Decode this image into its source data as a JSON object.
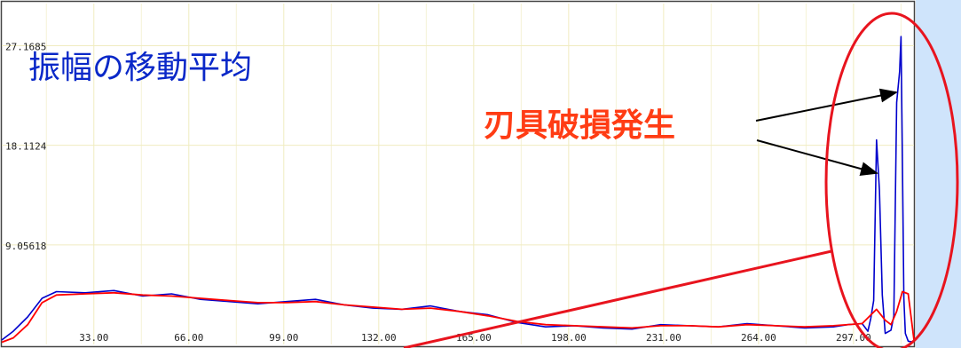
{
  "chart_data": {
    "type": "line",
    "title": "振幅の移動平均",
    "xlabel": "",
    "ylabel": "",
    "xlim": [
      1,
      318
    ],
    "ylim": [
      0,
      31
    ],
    "x_ticks": [
      "33.00",
      "66.00",
      "99.00",
      "132.00",
      "165.00",
      "198.00",
      "231.00",
      "264.00",
      "297.00"
    ],
    "y_ticks": [
      "9.05618",
      "18.1124",
      "27.1685"
    ],
    "grid": true,
    "series": [
      {
        "name": "",
        "color": "#0000cc",
        "x": [
          1,
          5,
          10,
          15,
          20,
          30,
          40,
          50,
          60,
          70,
          80,
          90,
          100,
          110,
          120,
          130,
          140,
          150,
          160,
          170,
          180,
          190,
          200,
          210,
          220,
          230,
          240,
          250,
          260,
          270,
          280,
          290,
          295,
          300,
          302,
          303,
          304,
          305,
          306,
          307,
          308,
          310,
          311,
          312,
          313,
          313.5,
          314,
          314.5,
          315,
          316,
          318
        ],
        "y": [
          0.4,
          1.2,
          2.5,
          4.2,
          4.8,
          4.7,
          4.9,
          4.4,
          4.6,
          4.1,
          3.9,
          3.7,
          3.9,
          4.1,
          3.6,
          3.3,
          3.2,
          3.5,
          3.0,
          2.7,
          2.0,
          1.6,
          1.7,
          1.5,
          1.4,
          1.8,
          1.7,
          1.6,
          1.9,
          1.7,
          1.5,
          1.6,
          1.8,
          1.9,
          1.2,
          2.4,
          4.0,
          18.6,
          14.0,
          4.5,
          1.0,
          1.3,
          2.6,
          22.0,
          24.8,
          28.0,
          16.5,
          4.2,
          1.0,
          0.3,
          0.2
        ]
      },
      {
        "name": "",
        "color": "#ff0000",
        "x": [
          1,
          5,
          10,
          15,
          20,
          30,
          40,
          50,
          60,
          70,
          80,
          90,
          100,
          110,
          120,
          130,
          140,
          150,
          160,
          170,
          180,
          190,
          200,
          210,
          220,
          230,
          240,
          250,
          260,
          270,
          280,
          290,
          300,
          305,
          308,
          310,
          312,
          314,
          316,
          318
        ],
        "y": [
          0.2,
          0.6,
          1.8,
          3.8,
          4.5,
          4.6,
          4.7,
          4.5,
          4.4,
          4.2,
          4.0,
          3.8,
          3.8,
          3.9,
          3.6,
          3.4,
          3.2,
          3.3,
          3.0,
          2.6,
          2.1,
          1.8,
          1.7,
          1.6,
          1.5,
          1.7,
          1.7,
          1.6,
          1.8,
          1.7,
          1.6,
          1.7,
          1.9,
          3.2,
          2.2,
          1.8,
          3.0,
          4.8,
          4.6,
          0.4
        ]
      }
    ],
    "annotations": [
      "刃具破損発生"
    ]
  }
}
